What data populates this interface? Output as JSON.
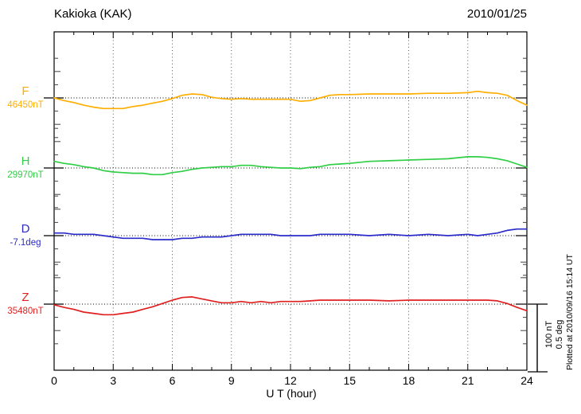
{
  "header": {
    "title": "Kakioka (KAK)",
    "date": "2010/01/25"
  },
  "chart_data": {
    "type": "line",
    "title": "Kakioka (KAK)",
    "date": "2010/01/25",
    "xlabel": "U T (hour)",
    "x_range": [
      0,
      24
    ],
    "x_tick_labels": [
      "0",
      "3",
      "6",
      "9",
      "12",
      "15",
      "18",
      "21",
      "24"
    ],
    "x_minor_step_hours": 1,
    "grid": "vertical dotted gridlines every 3 hours; dotted horizontal baseline per trace",
    "legend_position": "left margin, one colored letter + base value per trace",
    "value_encoding": "absolute value = base_value + delta; dotted baseline marks base_value",
    "scale_bar": {
      "label_nT": "100 nT",
      "label_deg": "0.5 deg",
      "nT": 100,
      "deg": 0.5
    },
    "hours": [
      0,
      0.5,
      1,
      1.5,
      2,
      2.5,
      3,
      3.5,
      4,
      4.5,
      5,
      5.5,
      6,
      6.5,
      7,
      7.5,
      8,
      8.5,
      9,
      9.5,
      10,
      10.5,
      11,
      11.5,
      12,
      12.5,
      13,
      13.5,
      14,
      14.5,
      15,
      16,
      17,
      18,
      19,
      20,
      21,
      21.5,
      22,
      22.5,
      23,
      23.5,
      24
    ],
    "series": [
      {
        "id": "F",
        "label": "F",
        "base_label": "46450nT",
        "base_value": 46450,
        "unit": "nT",
        "color": "#FFAE00",
        "delta": [
          0,
          -4,
          -7,
          -11,
          -14,
          -16,
          -16,
          -16,
          -13,
          -11,
          -8,
          -5,
          -1,
          4,
          6,
          5,
          1,
          -1,
          -2,
          -1,
          -2,
          -2,
          -2,
          -2,
          -2,
          -5,
          -4,
          0,
          4,
          5,
          5,
          6,
          6,
          6,
          7,
          7,
          8,
          10,
          8,
          7,
          4,
          -4,
          -11
        ]
      },
      {
        "id": "H",
        "label": "H",
        "base_label": "29970nT",
        "base_value": 29970,
        "unit": "nT",
        "color": "#2FCE45",
        "delta": [
          10,
          7,
          5,
          2,
          0,
          -4,
          -6,
          -7,
          -8,
          -8,
          -10,
          -10,
          -7,
          -5,
          -2,
          0,
          1,
          2,
          2,
          4,
          4,
          2,
          1,
          0,
          0,
          -1,
          1,
          2,
          5,
          6,
          7,
          10,
          11,
          12,
          13,
          14,
          17,
          17,
          16,
          14,
          11,
          6,
          1
        ]
      },
      {
        "id": "D",
        "label": "D",
        "base_label": "-7.1deg",
        "base_value": -7.1,
        "unit": "deg",
        "color": "#2B2BCB",
        "delta": [
          0.02,
          0.02,
          0.01,
          0.01,
          0.01,
          0,
          -0.01,
          -0.02,
          -0.02,
          -0.02,
          -0.03,
          -0.03,
          -0.03,
          -0.02,
          -0.02,
          -0.01,
          -0.01,
          -0.01,
          0,
          0.01,
          0.01,
          0.01,
          0.01,
          0,
          0,
          0,
          0,
          0.01,
          0.01,
          0.01,
          0.01,
          0,
          0.01,
          0,
          0.01,
          0,
          0.01,
          0,
          0.01,
          0.02,
          0.04,
          0.05,
          0.05
        ]
      },
      {
        "id": "Z",
        "label": "Z",
        "base_label": "35480nT",
        "base_value": 35480,
        "unit": "nT",
        "color": "#E02020",
        "delta": [
          -1,
          -5,
          -8,
          -12,
          -14,
          -16,
          -16,
          -14,
          -12,
          -8,
          -4,
          1,
          6,
          10,
          11,
          8,
          5,
          2,
          2,
          4,
          2,
          4,
          2,
          4,
          4,
          4,
          5,
          6,
          6,
          6,
          6,
          6,
          5,
          6,
          6,
          6,
          6,
          6,
          6,
          5,
          1,
          -5,
          -10
        ]
      }
    ]
  },
  "footer": {
    "plotted_at": "Plotted at 2010/09/16 15:14 UT"
  }
}
